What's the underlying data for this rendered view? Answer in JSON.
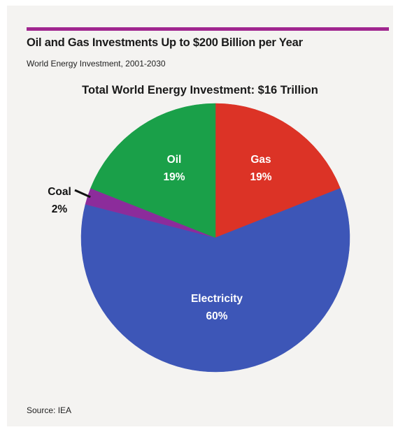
{
  "header": {
    "title": "Oil and Gas Investments Up to $200 Billion per Year",
    "subtitle": "World Energy Investment, 2001-2030"
  },
  "footer": {
    "source": "Source: IEA"
  },
  "colors": {
    "accent_bar": "#a0268f",
    "background": "#f4f3f1"
  },
  "chart_data": {
    "type": "pie",
    "title": "Total World Energy Investment: $16 Trillion",
    "slices": [
      {
        "label": "Gas",
        "value": 19,
        "display": "19%",
        "color": "#dc3326"
      },
      {
        "label": "Electricity",
        "value": 60,
        "display": "60%",
        "color": "#3d56b7"
      },
      {
        "label": "Coal",
        "value": 2,
        "display": "2%",
        "color": "#8c2c9b"
      },
      {
        "label": "Oil",
        "value": 19,
        "display": "19%",
        "color": "#1aa049"
      }
    ],
    "start": "12 o'clock",
    "direction": "clockwise"
  }
}
